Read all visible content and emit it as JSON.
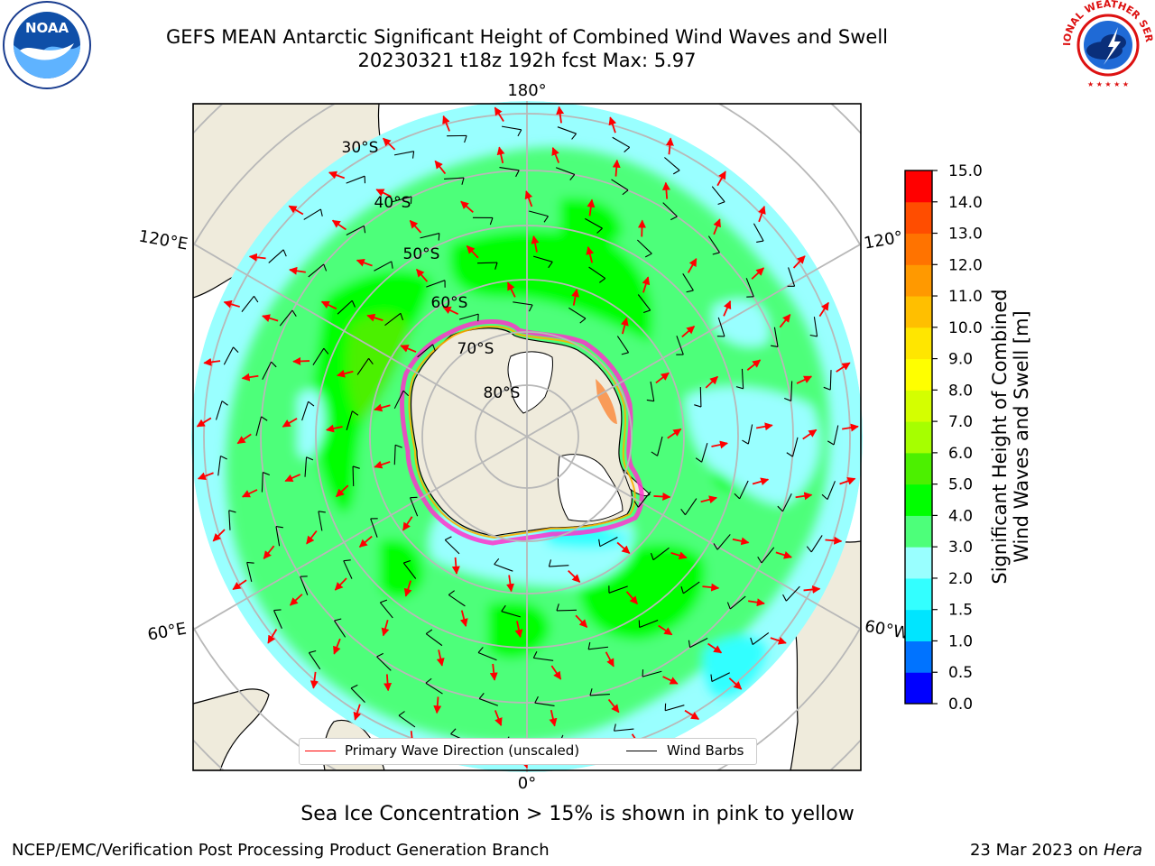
{
  "title": {
    "line1": "GEFS MEAN Antarctic Significant Height of Combined Wind Waves and Swell",
    "line2": "20230321 t18z 192h fcst   Max: 5.97"
  },
  "logos": {
    "noaa": {
      "text": "NOAA",
      "icon": "noaa-logo"
    },
    "nws": {
      "text": "NATIONAL WEATHER SERVICE",
      "icon": "nws-logo"
    }
  },
  "map": {
    "projection": "south-polar-stereographic",
    "longitude_labels": [
      "180°",
      "120°E",
      "120°",
      "60°E",
      "60°W",
      "0°"
    ],
    "latitude_labels": [
      "30°S",
      "40°S",
      "50°S",
      "60°S",
      "70°S",
      "80°S"
    ],
    "colors": {
      "land": "#efebdc",
      "ice_sheet": "#ffffff",
      "coast": "#000000",
      "grid": "#b8b8b8"
    }
  },
  "legend": {
    "items": [
      {
        "label": "Primary Wave Direction (unscaled)",
        "color": "#ff0000"
      },
      {
        "label": "Wind Barbs",
        "color": "#000000"
      }
    ]
  },
  "colorbar": {
    "title_line1": "Significant Height of Combined",
    "title_line2": "Wind Waves and Swell [m]",
    "ticks": [
      "0.0",
      "0.5",
      "1.0",
      "1.5",
      "2.0",
      "3.0",
      "4.0",
      "5.0",
      "6.0",
      "7.0",
      "8.0",
      "9.0",
      "10.0",
      "11.0",
      "12.0",
      "13.0",
      "14.0",
      "15.0"
    ],
    "colors": [
      "#0000ff",
      "#0073ff",
      "#00e5ff",
      "#33ffff",
      "#99ffff",
      "#4dff7a",
      "#00ff00",
      "#4cf000",
      "#a6ff00",
      "#d4ff00",
      "#ffff00",
      "#ffe600",
      "#ffbf00",
      "#ff9900",
      "#ff7300",
      "#ff4d00",
      "#ff0000"
    ]
  },
  "note": "Sea Ice Concentration > 15% is shown in pink to yellow",
  "footer": {
    "left": "NCEP/EMC/Verification Post Processing Product Generation Branch",
    "right_date": "23 Mar 2023 on",
    "right_host": "Hera"
  }
}
